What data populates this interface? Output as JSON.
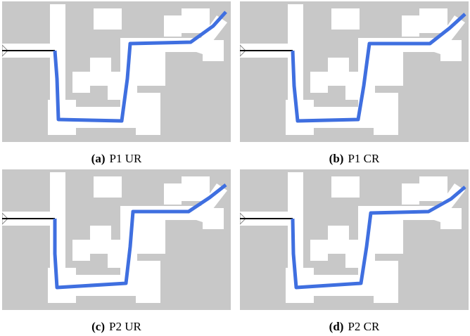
{
  "panels": [
    {
      "label": "(a)",
      "caption": "P1 UR"
    },
    {
      "label": "(b)",
      "caption": "P1 CR"
    },
    {
      "label": "(c)",
      "caption": "P2 UR"
    },
    {
      "label": "(d)",
      "caption": "P2 CR"
    }
  ]
}
